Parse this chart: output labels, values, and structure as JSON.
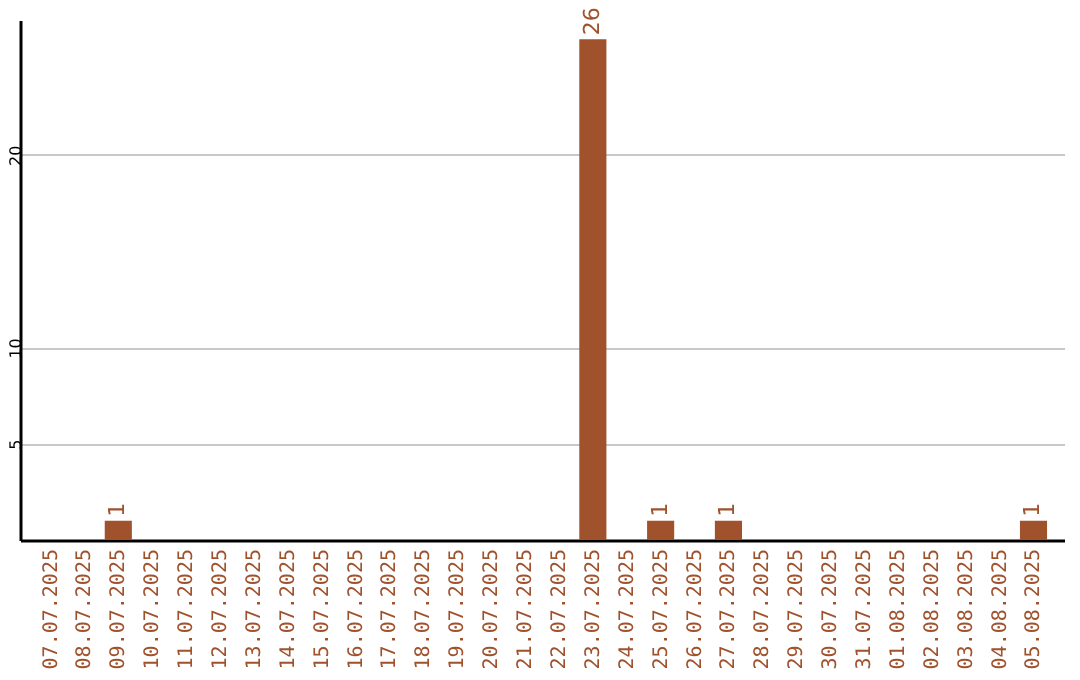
{
  "chart_data": {
    "type": "bar",
    "categories": [
      "07.07.2025",
      "08.07.2025",
      "09.07.2025",
      "10.07.2025",
      "11.07.2025",
      "12.07.2025",
      "13.07.2025",
      "14.07.2025",
      "15.07.2025",
      "16.07.2025",
      "17.07.2025",
      "18.07.2025",
      "19.07.2025",
      "20.07.2025",
      "21.07.2025",
      "22.07.2025",
      "23.07.2025",
      "24.07.2025",
      "25.07.2025",
      "26.07.2025",
      "27.07.2025",
      "28.07.2025",
      "29.07.2025",
      "30.07.2025",
      "31.07.2025",
      "01.08.2025",
      "02.08.2025",
      "03.08.2025",
      "04.08.2025",
      "05.08.2025"
    ],
    "values": [
      0,
      0,
      1,
      0,
      0,
      0,
      0,
      0,
      0,
      0,
      0,
      0,
      0,
      0,
      0,
      0,
      26,
      0,
      1,
      0,
      1,
      0,
      0,
      0,
      0,
      0,
      0,
      0,
      0,
      1
    ],
    "value_labels": [
      null,
      null,
      "1",
      null,
      null,
      null,
      null,
      null,
      null,
      null,
      null,
      null,
      null,
      null,
      null,
      null,
      "26",
      null,
      "1",
      null,
      "1",
      null,
      null,
      null,
      null,
      null,
      null,
      null,
      null,
      "1"
    ],
    "color": "#a0522d",
    "ylim": [
      0,
      27
    ],
    "yticks": [
      5,
      10,
      20
    ],
    "grid": "y"
  }
}
